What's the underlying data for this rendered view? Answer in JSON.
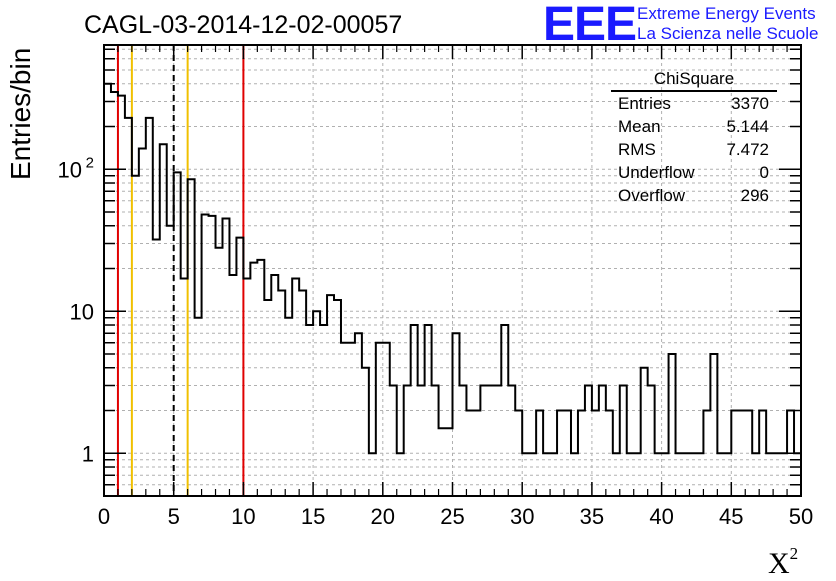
{
  "header": {
    "title": "CAGL-03-2014-12-02-00057",
    "logo_text": "EEE",
    "logo_line1": "Extreme Energy Events",
    "logo_line2": "La Scienza nelle Scuole",
    "logo_color": "#1a1aff"
  },
  "stats_box": {
    "title": "ChiSquare",
    "rows": [
      {
        "label": "Entries",
        "value": "3370"
      },
      {
        "label": "Mean",
        "value": "5.144"
      },
      {
        "label": "RMS",
        "value": "7.472"
      },
      {
        "label": "Underflow",
        "value": "0"
      },
      {
        "label": "Overflow",
        "value": "296"
      }
    ]
  },
  "chart_data": {
    "type": "histogram",
    "title": "CAGL-03-2014-12-02-00057",
    "xlabel": "X",
    "xlabel_sup": "2",
    "ylabel": "Entries/bin",
    "y_scale": "log",
    "xlim": [
      0,
      50
    ],
    "ylim": [
      0.5,
      750
    ],
    "grid": true,
    "bin_width": 0.5,
    "x_ticks": [
      "0",
      "5",
      "10",
      "15",
      "20",
      "25",
      "30",
      "35",
      "40",
      "45",
      "50"
    ],
    "y_tick_labels": [
      {
        "value": 1,
        "label": "1"
      },
      {
        "value": 10,
        "label": "10"
      },
      {
        "value": 100,
        "label": "10",
        "sup": "2"
      }
    ],
    "bin_values": [
      400,
      350,
      330,
      230,
      90,
      140,
      230,
      32,
      150,
      40,
      95,
      17,
      85,
      9,
      48,
      47,
      28,
      45,
      18,
      33,
      17,
      22,
      23,
      12,
      18,
      14,
      9,
      17,
      14,
      8,
      10,
      8,
      13,
      12,
      6,
      6,
      7,
      4,
      1,
      6,
      6,
      3,
      1,
      3,
      8,
      3,
      8,
      3,
      1.5,
      1.5,
      7,
      3,
      2,
      2,
      3,
      3,
      3,
      8,
      3,
      2,
      1,
      1,
      2,
      1,
      1,
      2,
      2,
      1,
      2,
      3,
      2,
      3,
      2,
      1,
      3,
      1,
      1,
      4,
      3,
      1,
      1,
      5,
      1,
      1,
      1,
      1,
      2,
      5,
      1,
      1,
      2,
      2,
      2,
      1,
      2,
      1,
      1,
      1,
      2,
      1
    ],
    "markers": [
      {
        "x": 1,
        "color": "#e00000",
        "style": "solid"
      },
      {
        "x": 2,
        "color": "#f0c000",
        "style": "solid"
      },
      {
        "x": 5,
        "color": "#000000",
        "style": "dashed"
      },
      {
        "x": 6,
        "color": "#f0c000",
        "style": "solid"
      },
      {
        "x": 10,
        "color": "#e00000",
        "style": "solid"
      }
    ]
  }
}
